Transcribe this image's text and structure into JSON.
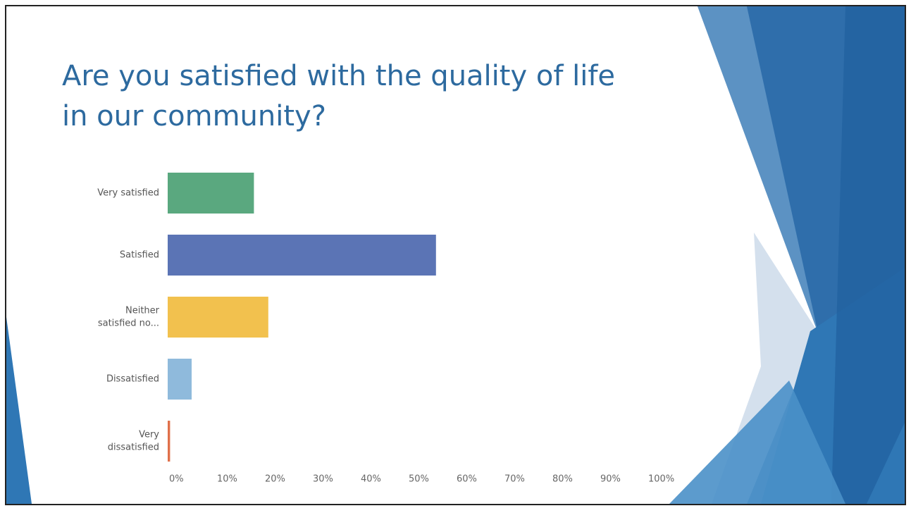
{
  "chart_data": {
    "type": "bar",
    "orientation": "horizontal",
    "title": [
      "Are you satisfied with the quality of life",
      "in our community?"
    ],
    "categories": [
      [
        "Very satisfied"
      ],
      [
        "Satisfied"
      ],
      [
        "Neither",
        "satisfied no..."
      ],
      [
        "Dissatisfied"
      ],
      [
        "Very",
        "dissatisfied"
      ]
    ],
    "values": [
      18,
      56,
      21,
      5,
      0.5
    ],
    "colors": [
      "#5aa87f",
      "#5b74b5",
      "#f2c14e",
      "#8fbadc",
      "#e0704a"
    ],
    "xlim": [
      0,
      100
    ],
    "xticks": [
      {
        "value": 0,
        "label": "0%"
      },
      {
        "value": 10,
        "label": "10%"
      },
      {
        "value": 20,
        "label": "20%"
      },
      {
        "value": 30,
        "label": "30%"
      },
      {
        "value": 40,
        "label": "40%"
      },
      {
        "value": 50,
        "label": "50%"
      },
      {
        "value": 60,
        "label": "60%"
      },
      {
        "value": 70,
        "label": "70%"
      },
      {
        "value": 80,
        "label": "80%"
      },
      {
        "value": 90,
        "label": "90%"
      },
      {
        "value": 100,
        "label": "100%"
      }
    ],
    "grid": false
  }
}
